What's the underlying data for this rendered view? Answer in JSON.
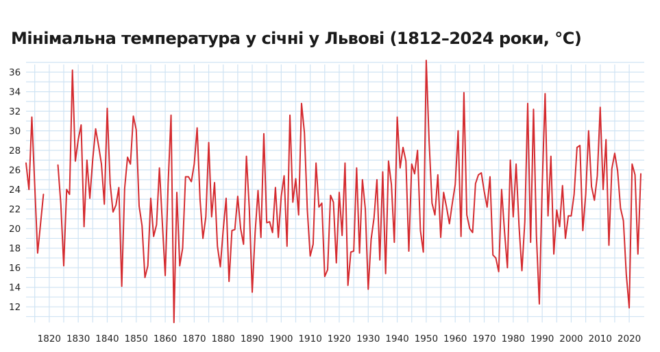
{
  "chart_data": {
    "type": "line",
    "title": "Мінімальна температура у січні у Львові (1812–2024 роки, °C)",
    "xlabel": "",
    "ylabel": "",
    "xlim": [
      1812,
      2024
    ],
    "ylim": [
      10,
      37
    ],
    "x_ticks": [
      1820,
      1830,
      1840,
      1850,
      1860,
      1870,
      1880,
      1890,
      1900,
      1910,
      1920,
      1930,
      1940,
      1950,
      1960,
      1970,
      1980,
      1990,
      2000,
      2010,
      2020
    ],
    "y_ticks": [
      12,
      14,
      16,
      18,
      20,
      22,
      24,
      26,
      28,
      30,
      32,
      34,
      36
    ],
    "grid": true,
    "line_color": "#d42a2f",
    "grid_color": "#cfe3f3",
    "series": [
      {
        "name": "",
        "segments": [
          {
            "x": [
              1812,
              1813,
              1814,
              1815,
              1816,
              1817,
              1818
            ],
            "y": [
              26.7,
              24.0,
              31.4,
              24.4,
              17.5,
              20.5,
              23.5
            ]
          },
          {
            "x": [
              1823,
              1824,
              1825,
              1826,
              1827,
              1828,
              1829,
              1830,
              1831,
              1832,
              1833,
              1834,
              1835,
              1836,
              1837,
              1838,
              1839,
              1840,
              1841,
              1842,
              1843,
              1844,
              1845,
              1846,
              1847,
              1848,
              1849,
              1850,
              1851,
              1852,
              1853,
              1854,
              1855,
              1856,
              1857,
              1858,
              1859,
              1860,
              1861,
              1862,
              1863,
              1864,
              1865,
              1866,
              1867,
              1868,
              1869,
              1870,
              1871,
              1872,
              1873,
              1874,
              1875,
              1876,
              1877,
              1878,
              1879,
              1880,
              1881,
              1882,
              1883,
              1884,
              1885,
              1886,
              1887,
              1888,
              1889,
              1890,
              1891,
              1892,
              1893,
              1894,
              1895,
              1896,
              1897,
              1898,
              1899,
              1900,
              1901,
              1902,
              1903,
              1904,
              1905,
              1906,
              1907,
              1908,
              1909,
              1910,
              1911,
              1912,
              1913,
              1914,
              1915,
              1916,
              1917,
              1918,
              1919,
              1920,
              1921,
              1922,
              1923,
              1924,
              1925,
              1926,
              1927,
              1928,
              1929,
              1930,
              1931,
              1932,
              1933,
              1934,
              1935,
              1936,
              1937,
              1938,
              1939,
              1940,
              1941,
              1942,
              1943,
              1944,
              1945,
              1946,
              1947,
              1948,
              1949,
              1950,
              1951,
              1952,
              1953,
              1954,
              1955,
              1956,
              1957,
              1958,
              1959,
              1960,
              1961,
              1962,
              1963,
              1964,
              1965,
              1966,
              1967,
              1968,
              1969,
              1970,
              1971,
              1972,
              1973,
              1974,
              1975,
              1976,
              1977,
              1978,
              1979,
              1980,
              1981,
              1982,
              1983,
              1984,
              1985,
              1986,
              1987,
              1988,
              1989,
              1990,
              1991,
              1992,
              1993,
              1994,
              1995,
              1996,
              1997,
              1998,
              1999,
              2000,
              2001,
              2002,
              2003,
              2004,
              2005,
              2006,
              2007,
              2008,
              2009,
              2010,
              2011,
              2012,
              2013,
              2014,
              2015,
              2016,
              2017,
              2018,
              2019,
              2020,
              2021,
              2022,
              2023,
              2024
            ],
            "y": [
              26.5,
              22.5,
              16.2,
              24.0,
              23.5,
              36.2,
              26.9,
              29.1,
              30.6,
              20.2,
              27.0,
              23.1,
              27.1,
              30.2,
              28.5,
              26.6,
              22.5,
              32.3,
              24.6,
              21.7,
              22.4,
              24.2,
              14.1,
              24.1,
              27.3,
              26.6,
              31.5,
              30.1,
              22.3,
              20.3,
              15.0,
              16.2,
              23.1,
              19.2,
              20.4,
              26.2,
              20.6,
              15.2,
              24.6,
              31.6,
              10.4,
              23.7,
              16.2,
              18.0,
              25.3,
              25.3,
              24.8,
              26.6,
              30.3,
              23.0,
              19.0,
              21.2,
              28.8,
              21.2,
              24.7,
              18.2,
              16.1,
              19.9,
              23.1,
              14.6,
              19.8,
              19.9,
              23.3,
              20.0,
              18.4,
              27.4,
              22.0,
              13.5,
              19.6,
              23.9,
              19.1,
              29.7,
              20.6,
              20.7,
              19.6,
              24.2,
              19.1,
              23.3,
              25.4,
              18.2,
              31.6,
              22.7,
              25.1,
              21.4,
              32.8,
              29.8,
              21.9,
              17.2,
              18.4,
              26.7,
              22.2,
              22.6,
              15.1,
              15.8,
              23.4,
              22.7,
              16.5,
              23.7,
              19.3,
              26.7,
              14.2,
              17.6,
              17.7,
              26.2,
              17.5,
              25.0,
              22.0,
              13.8,
              18.9,
              21.1,
              25.0,
              16.8,
              25.8,
              15.4,
              26.9,
              24.5,
              18.6,
              31.4,
              26.2,
              28.3,
              26.9,
              17.7,
              26.6,
              25.6,
              28.0,
              19.8,
              17.6,
              37.2,
              28.9,
              22.6,
              21.4,
              25.5,
              19.1,
              23.7,
              22.2,
              20.5,
              22.6,
              24.5,
              30.0,
              19.2,
              33.9,
              21.4,
              20.0,
              19.6,
              24.6,
              25.5,
              25.7,
              23.8,
              22.2,
              25.3,
              17.3,
              17.0,
              15.6,
              24.0,
              19.7,
              16.0,
              27.0,
              21.2,
              26.6,
              20.3,
              15.7,
              20.7,
              32.8,
              18.6,
              32.2,
              19.3,
              12.3,
              24.4,
              33.8,
              21.3,
              27.4,
              17.4,
              21.9,
              20.2,
              24.4,
              19.0,
              21.3,
              21.3,
              23.5,
              28.3,
              28.5,
              19.8,
              23.5,
              30.0,
              24.3,
              22.9,
              25.4,
              32.4,
              24.0,
              29.1,
              18.3,
              26.1,
              27.7,
              25.9,
              22.1,
              20.8,
              15.3,
              11.9,
              26.6,
              25.5,
              17.4,
              25.6
            ]
          }
        ]
      }
    ]
  }
}
